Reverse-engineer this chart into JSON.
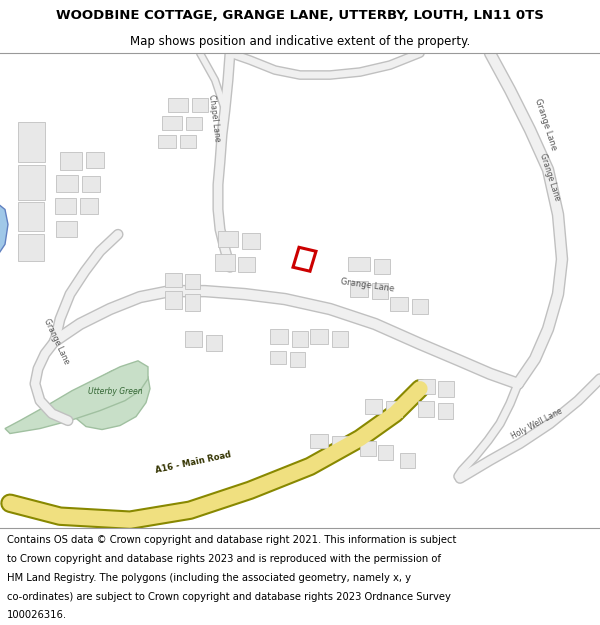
{
  "title": "WOODBINE COTTAGE, GRANGE LANE, UTTERBY, LOUTH, LN11 0TS",
  "subtitle": "Map shows position and indicative extent of the property.",
  "footer_lines": [
    "Contains OS data © Crown copyright and database right 2021. This information is subject",
    "to Crown copyright and database rights 2023 and is reproduced with the permission of",
    "HM Land Registry. The polygons (including the associated geometry, namely x, y",
    "co-ordinates) are subject to Crown copyright and database rights 2023 Ordnance Survey",
    "100026316."
  ],
  "map_bg": "#ffffff",
  "road_fill": "#f0f0f0",
  "road_edge": "#c0c0c0",
  "building_fill": "#e8e8e8",
  "building_edge": "#c0c0c0",
  "green_fill": "#c8dfc8",
  "green_edge": "#a0c0a0",
  "a16_fill": "#f0e080",
  "a16_edge": "#888800",
  "water_fill": "#a0c8e8",
  "water_edge": "#6080c0",
  "highlight": "#cc0000",
  "text_road": "#555555",
  "text_a16": "#333300"
}
